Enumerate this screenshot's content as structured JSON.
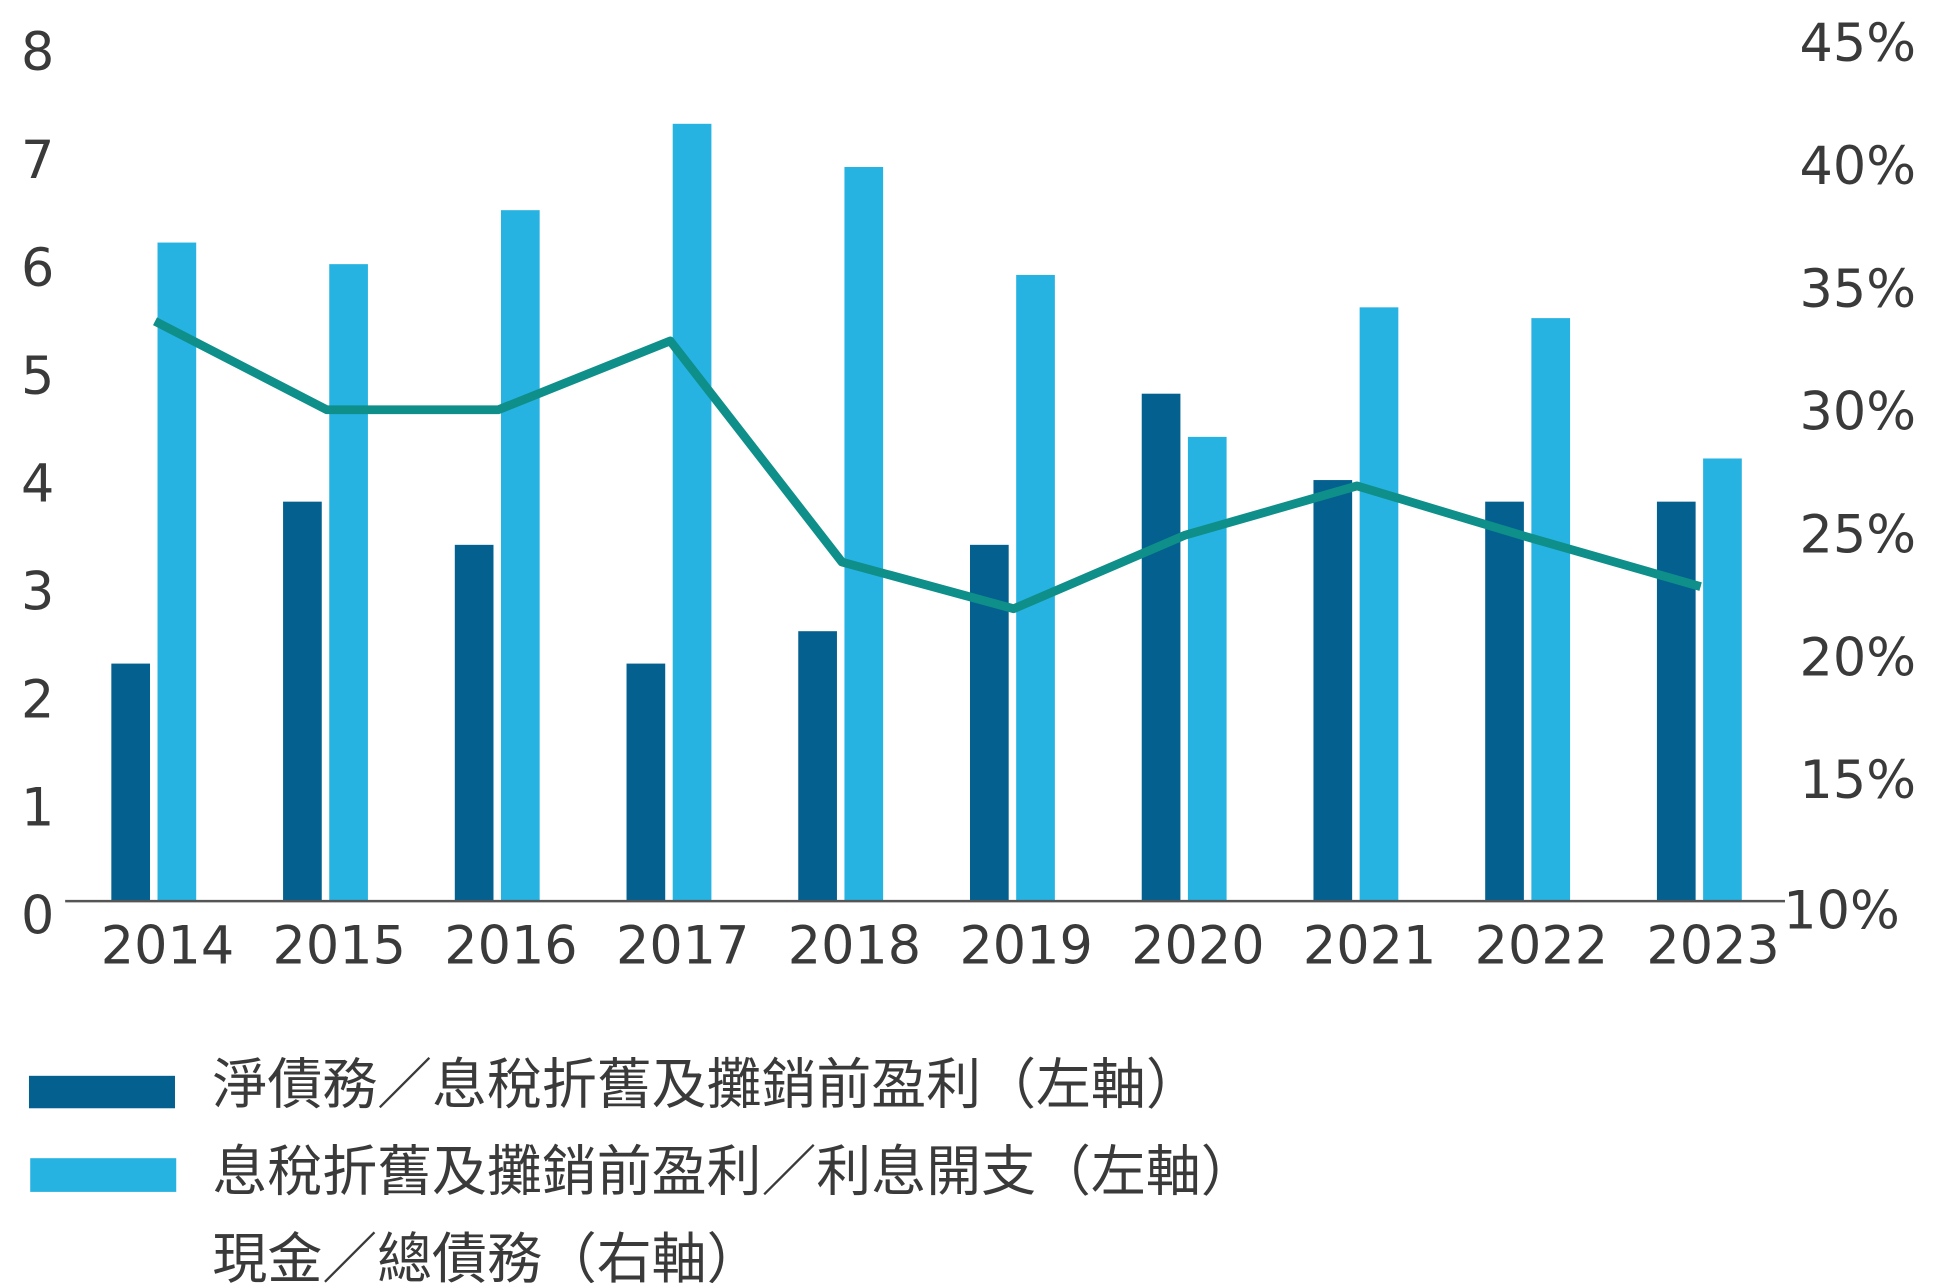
{
  "chart_data": {
    "type": "bar+line",
    "categories": [
      "2014",
      "2015",
      "2016",
      "2017",
      "2018",
      "2019",
      "2020",
      "2021",
      "2022",
      "2023"
    ],
    "series": [
      {
        "name": "淨債務／息稅折舊及攤銷前盈利（左軸）",
        "type": "bar",
        "axis": "left",
        "color": "#03608f",
        "values": [
          2.2,
          3.7,
          3.3,
          2.2,
          2.5,
          3.3,
          4.7,
          3.9,
          3.7,
          3.7
        ]
      },
      {
        "name": "息稅折舊及攤銷前盈利／利息開支（左軸）",
        "type": "bar",
        "axis": "left",
        "color": "#27b3e2",
        "values": [
          6.1,
          5.9,
          6.4,
          7.2,
          6.8,
          5.8,
          4.3,
          5.5,
          5.4,
          4.1
        ]
      },
      {
        "name": "現金／總債務（右軸）",
        "type": "line",
        "axis": "right",
        "color": "#0e8f8a",
        "unit": "%",
        "values": [
          33.6,
          30.0,
          30.0,
          32.8,
          23.8,
          21.9,
          24.9,
          26.9,
          24.8,
          22.8
        ]
      }
    ],
    "left_axis": {
      "ylim": [
        0,
        8
      ],
      "ticks": [
        "0",
        "1",
        "2",
        "3",
        "4",
        "5",
        "6",
        "7",
        "8"
      ]
    },
    "right_axis": {
      "ylim": [
        10,
        45
      ],
      "ticks": [
        "10%",
        "15%",
        "20%",
        "25%",
        "30%",
        "35%",
        "40%",
        "45%"
      ]
    },
    "grid": false,
    "legend_position": "bottom-left"
  }
}
